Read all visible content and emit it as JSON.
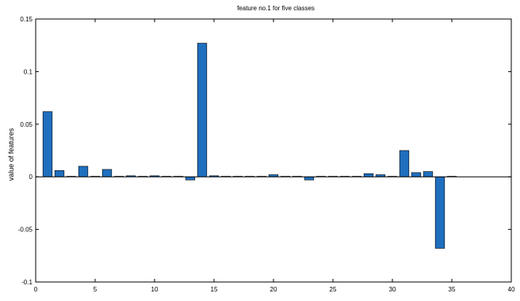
{
  "chart_data": {
    "type": "bar",
    "title": "feature no.1 for five classes",
    "xlabel": "",
    "ylabel": "value of features",
    "xlim": [
      0,
      40
    ],
    "ylim": [
      -0.1,
      0.15
    ],
    "xticks": [
      0,
      5,
      10,
      15,
      20,
      25,
      30,
      35,
      40
    ],
    "xtick_labels": [
      "0",
      "5",
      "10",
      "15",
      "20",
      "25",
      "30",
      "35",
      "40"
    ],
    "yticks": [
      -0.1,
      -0.05,
      0,
      0.05,
      0.1,
      0.15
    ],
    "ytick_labels": [
      "-0.1",
      "-0.05",
      "0",
      "0.05",
      "0.1",
      "0.15"
    ],
    "grid": false,
    "bar_color": "#1f6fbf",
    "x": [
      1,
      2,
      3,
      4,
      5,
      6,
      7,
      8,
      9,
      10,
      11,
      12,
      13,
      14,
      15,
      16,
      17,
      18,
      19,
      20,
      21,
      22,
      23,
      24,
      25,
      26,
      27,
      28,
      29,
      30,
      31,
      32,
      33,
      34,
      35
    ],
    "values": [
      0.062,
      0.006,
      0.0005,
      0.01,
      0.0005,
      0.007,
      0.0005,
      0.001,
      0.0005,
      0.001,
      0.0005,
      0.0005,
      -0.003,
      0.127,
      0.001,
      0.0005,
      0.0005,
      0.0005,
      0.0005,
      0.002,
      0.0005,
      0.0005,
      -0.003,
      0.0005,
      0.0005,
      0.0005,
      0.0005,
      0.003,
      0.002,
      0.0005,
      0.025,
      0.004,
      0.005,
      -0.068,
      0.0005
    ]
  }
}
